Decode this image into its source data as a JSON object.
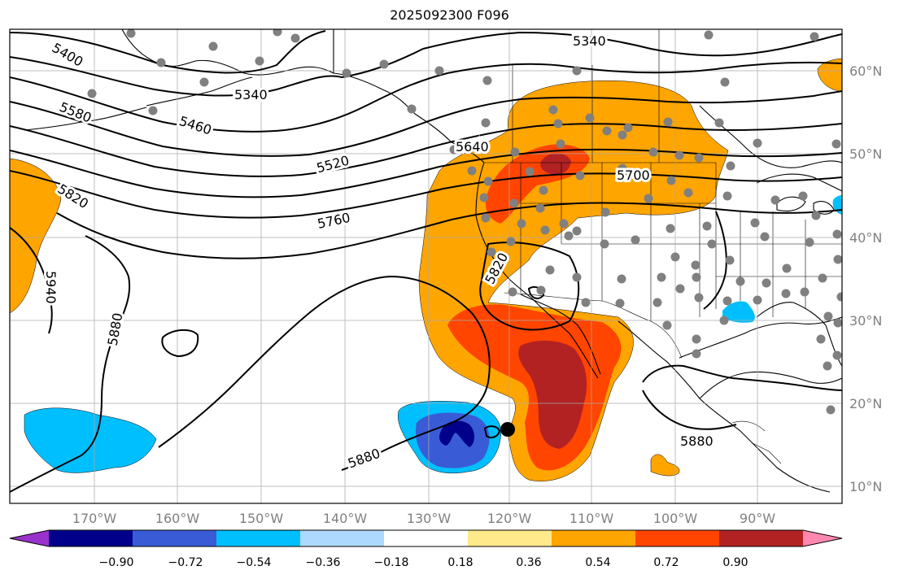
{
  "title": "2025092300 F096",
  "map": {
    "lon_labels": [
      "170°W",
      "160°W",
      "150°W",
      "140°W",
      "130°W",
      "120°W",
      "110°W",
      "100°W",
      "90°W"
    ],
    "lat_labels": [
      "60°N",
      "50°N",
      "40°N",
      "30°N",
      "20°N",
      "10°N"
    ],
    "contour_labels": [
      "5340",
      "5400",
      "5340",
      "5460",
      "5580",
      "5520",
      "5640",
      "5700",
      "5760",
      "5820",
      "5820",
      "5940",
      "5880",
      "5880",
      "5880"
    ],
    "colors": {
      "orange": "#ffa500",
      "red_orange": "#ff4500",
      "dark_red": "#b22222",
      "light_blue": "#00bfff",
      "blue": "#3a5bd6",
      "navy": "#00008b",
      "station": "#808080"
    }
  },
  "colorbar": {
    "labels": [
      "−0.90",
      "−0.72",
      "−0.54",
      "−0.36",
      "−0.18",
      "0.18",
      "0.36",
      "0.54",
      "0.72",
      "0.90"
    ],
    "colors": [
      "#9932cc",
      "#00008b",
      "#3a5bd6",
      "#00bfff",
      "#add8ff",
      "#ffffff",
      "#ffe98a",
      "#ffa500",
      "#ff4500",
      "#b22222",
      "#ff88b0"
    ]
  }
}
